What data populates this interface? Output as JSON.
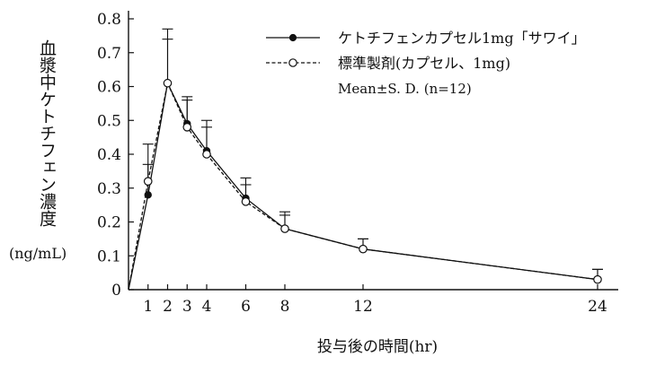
{
  "chart_data": {
    "type": "line",
    "ylabel": "血漿中ケトチフェン濃度",
    "yunit": "(ng/mL)",
    "xlabel": "投与後の時間(hr)",
    "x": [
      0,
      1,
      2,
      3,
      4,
      6,
      8,
      12,
      24
    ],
    "xticks": [
      1,
      2,
      3,
      4,
      6,
      8,
      12,
      24
    ],
    "yticks": [
      0,
      0.1,
      0.2,
      0.3,
      0.4,
      0.5,
      0.6,
      0.7,
      0.8
    ],
    "xlim": [
      0,
      24.5
    ],
    "ylim": [
      0,
      0.85
    ],
    "grid": false,
    "legend_position": "top-right",
    "series": [
      {
        "name": "ケトチフェンカプセル1mg「サワイ」",
        "marker": "filled-circle",
        "line": "solid",
        "color": "#111111",
        "values": [
          0,
          0.28,
          0.61,
          0.49,
          0.41,
          0.27,
          0.18,
          0.12,
          0.03
        ],
        "sd_upper": [
          null,
          0.37,
          0.77,
          0.57,
          0.5,
          0.33,
          0.23,
          0.15,
          0.06
        ]
      },
      {
        "name": "標準製剤(カプセル、1mg)",
        "marker": "open-circle",
        "line": "dashed",
        "color": "#111111",
        "values": [
          0,
          0.32,
          0.61,
          0.48,
          0.4,
          0.26,
          0.18,
          0.12,
          0.03
        ],
        "sd_upper": [
          null,
          0.43,
          0.74,
          0.56,
          0.48,
          0.31,
          0.22,
          0.15,
          0.06
        ]
      }
    ],
    "legend_note": "Mean±S. D. (n=12)"
  }
}
